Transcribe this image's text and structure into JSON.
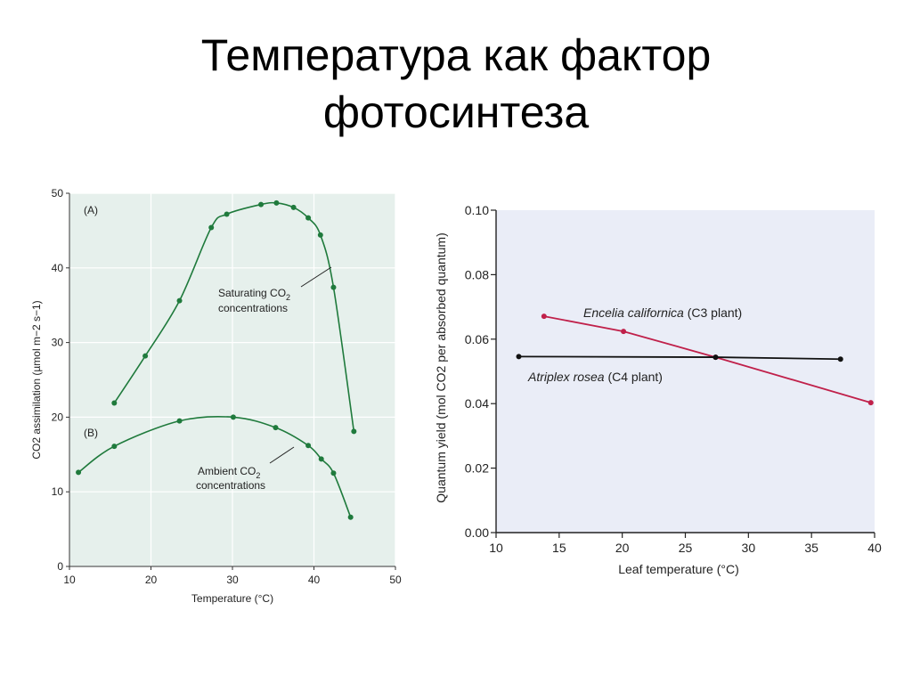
{
  "slide": {
    "title_line1": "Температура как фактор",
    "title_line2": "фотосинтеза"
  },
  "chart_data": [
    {
      "type": "line",
      "xlabel": "Temperature (°C)",
      "ylabel": "CO2 assimilation (µmol m−2 s−1)",
      "xlim": [
        10,
        50
      ],
      "ylim": [
        0,
        50
      ],
      "x_ticks": [
        "10",
        "20",
        "30",
        "40",
        "50"
      ],
      "y_ticks": [
        "0",
        "10",
        "20",
        "30",
        "40",
        "50"
      ],
      "grid": true,
      "background": "#e6f0ec",
      "line_color": "#1f7a3c",
      "panel_labels": [
        "(A)",
        "(B)"
      ],
      "series": [
        {
          "name": "Saturating CO2 concentrations",
          "x": [
            15.5,
            19.3,
            23.5,
            27.4,
            29.3,
            33.5,
            35.4,
            37.5,
            39.3,
            40.8,
            42.4,
            44.9
          ],
          "y": [
            21.9,
            28.2,
            35.6,
            45.4,
            47.2,
            48.5,
            48.7,
            48.1,
            46.7,
            44.4,
            37.4,
            18.1
          ]
        },
        {
          "name": "Ambient CO2 concentrations",
          "x": [
            11.1,
            15.5,
            23.5,
            30.1,
            35.3,
            39.3,
            40.9,
            42.4,
            44.5
          ],
          "y": [
            12.6,
            16.1,
            19.5,
            20.0,
            18.6,
            16.2,
            14.4,
            12.5,
            6.6
          ]
        }
      ],
      "annotation_lines": [
        {
          "text_1": "Saturating CO",
          "sub": "2",
          "text_2": "concentrations"
        },
        {
          "text_1": "Ambient CO",
          "sub": "2",
          "text_2": "concentrations"
        }
      ]
    },
    {
      "type": "line",
      "xlabel": "Leaf temperature (°C)",
      "ylabel": "Quantum yield (mol CO2 per absorbed quantum)",
      "xlim": [
        10,
        40
      ],
      "ylim": [
        0.0,
        0.1
      ],
      "x_ticks": [
        "10",
        "15",
        "20",
        "25",
        "30",
        "35",
        "40"
      ],
      "y_ticks": [
        "0.00",
        "0.02",
        "0.04",
        "0.06",
        "0.08",
        "0.10"
      ],
      "grid": false,
      "background": "#eaedf7",
      "series": [
        {
          "name": "Encelia californica (C3 plant)",
          "species": "Encelia californica",
          "type_label": "(C3 plant)",
          "color": "#c0204a",
          "x": [
            13.8,
            20.1,
            27.4,
            39.7
          ],
          "y": [
            0.0671,
            0.0624,
            0.0544,
            0.0403
          ]
        },
        {
          "name": "Atriplex rosea (C4 plant)",
          "species": "Atriplex rosea",
          "type_label": "(C4 plant)",
          "color": "#111111",
          "x": [
            11.8,
            27.4,
            37.3
          ],
          "y": [
            0.0546,
            0.0544,
            0.0538
          ]
        }
      ]
    }
  ]
}
